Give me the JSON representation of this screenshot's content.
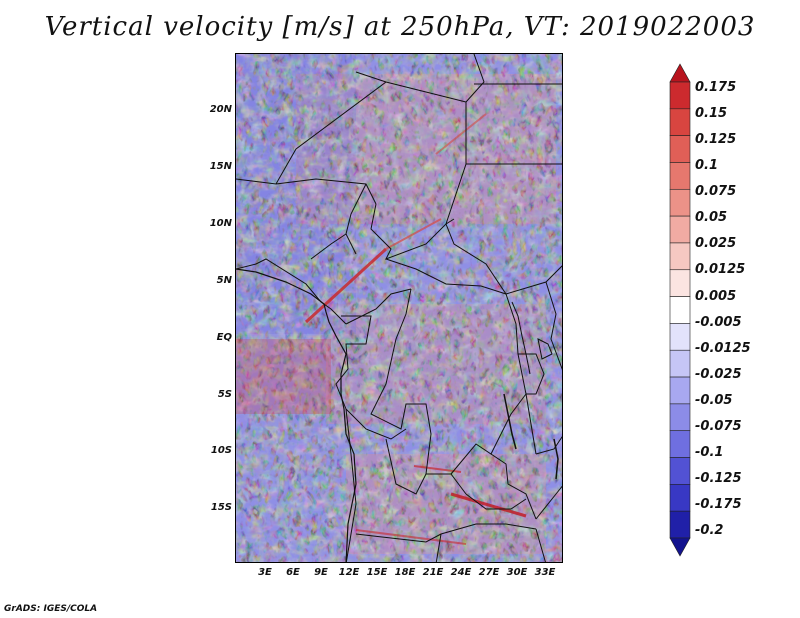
{
  "title": "Vertical velocity [m/s] at 250hPa, VT: 2019022003",
  "footer": "GrADS: IGES/COLA",
  "map": {
    "lat_labels": [
      "20N",
      "15N",
      "10N",
      "5N",
      "EQ",
      "5S",
      "10S",
      "15S"
    ],
    "lat_values": [
      20,
      15,
      10,
      5,
      0,
      -5,
      -10,
      -15
    ],
    "lon_labels": [
      "3E",
      "6E",
      "9E",
      "12E",
      "15E",
      "18E",
      "21E",
      "24E",
      "27E",
      "30E",
      "33E"
    ],
    "lon_values": [
      3,
      6,
      9,
      12,
      15,
      18,
      21,
      24,
      27,
      30,
      33
    ]
  },
  "colorbar": {
    "labels": [
      "0.175",
      "0.15",
      "0.125",
      "0.1",
      "0.075",
      "0.05",
      "0.025",
      "0.0125",
      "0.005",
      "-0.005",
      "-0.0125",
      "-0.025",
      "-0.05",
      "-0.075",
      "-0.1",
      "-0.125",
      "-0.175",
      "-0.2"
    ],
    "colors": [
      "#b8141e",
      "#cc2a2e",
      "#d84540",
      "#e05f57",
      "#e6786e",
      "#ec9288",
      "#f1aba3",
      "#f6c8c2",
      "#fbe4e1",
      "#ffffff",
      "#e2e2fb",
      "#c6c6f6",
      "#a8a8f0",
      "#8c8ce8",
      "#6f6fe0",
      "#5252d4",
      "#3838c4",
      "#2020a8",
      "#13138e"
    ]
  }
}
